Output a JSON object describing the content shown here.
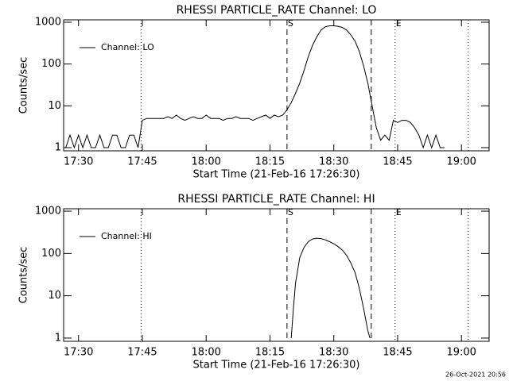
{
  "chart_data": [
    {
      "type": "line",
      "title": "RHESSI PARTICLE_RATE Channel: LO",
      "xlabel": "Start Time (21-Feb-16 17:26:30)",
      "ylabel": "Counts/sec",
      "x": [
        27,
        28,
        29,
        30,
        31,
        32,
        33,
        34,
        35,
        36,
        37,
        38,
        39,
        40,
        41,
        42,
        43,
        44,
        45,
        46,
        47,
        48,
        49,
        50,
        51,
        52,
        53,
        54,
        55,
        56,
        57,
        58,
        59,
        60,
        61,
        62,
        63,
        64,
        65,
        66,
        67,
        68,
        69,
        70,
        71,
        72,
        73,
        74,
        75,
        76,
        77,
        78,
        79,
        80,
        81,
        82,
        83,
        84,
        85,
        86,
        87,
        88,
        89,
        90,
        91,
        92,
        93,
        94,
        95,
        96,
        97,
        98,
        99,
        100,
        101,
        102,
        103,
        104,
        105,
        106,
        107,
        108,
        109,
        110,
        111,
        112,
        113,
        114,
        115,
        116
      ],
      "series": [
        {
          "name": "Channel: LO",
          "color": "#000000",
          "values": [
            1,
            2,
            1,
            2,
            1,
            2,
            1,
            1,
            2,
            1,
            1,
            2,
            2,
            1,
            1,
            2,
            2,
            1,
            4.5,
            5,
            5,
            5,
            5,
            5,
            5.5,
            5,
            6,
            5,
            4.5,
            5,
            5.5,
            5,
            5,
            6,
            5,
            5,
            5,
            4.5,
            5,
            5,
            5.5,
            5,
            5,
            5,
            4.5,
            5,
            5.5,
            6,
            5,
            6,
            5.5,
            6,
            8,
            12,
            20,
            35,
            70,
            150,
            280,
            450,
            650,
            780,
            820,
            820,
            800,
            750,
            650,
            500,
            350,
            200,
            90,
            35,
            10,
            3,
            1.5,
            2,
            1.5,
            4.5,
            4,
            4.5,
            4.5,
            4,
            3,
            2,
            1,
            2,
            1,
            2,
            1,
            1
          ]
        }
      ],
      "xlim": [
        26.5,
        126.5
      ],
      "xticks": [
        {
          "value": 30,
          "label": "17:30"
        },
        {
          "value": 45,
          "label": "17:45"
        },
        {
          "value": 60,
          "label": "18:00"
        },
        {
          "value": 75,
          "label": "18:15"
        },
        {
          "value": 90,
          "label": "18:30"
        },
        {
          "value": 105,
          "label": "18:45"
        },
        {
          "value": 120,
          "label": "19:00"
        }
      ],
      "ylim": [
        0.84,
        1140
      ],
      "yticks": [
        1,
        10,
        100,
        1000
      ],
      "log_y": true,
      "legend": "upper left",
      "vlines": [
        {
          "x": 44.7,
          "style": "dotted"
        },
        {
          "x": 79,
          "style": "dashed"
        },
        {
          "x": 98.8,
          "style": "dashed"
        },
        {
          "x": 104.4,
          "style": "dotted"
        },
        {
          "x": 121.6,
          "style": "dotted"
        }
      ],
      "annotations": [
        {
          "text": "S",
          "x": 79
        },
        {
          "text": "E",
          "x": 104.4
        }
      ]
    },
    {
      "type": "line",
      "title": "RHESSI PARTICLE_RATE Channel: HI",
      "xlabel": "Start Time (21-Feb-16 17:26:30)",
      "ylabel": "Counts/sec",
      "x": [
        80,
        80.5,
        81,
        82,
        83,
        84,
        85,
        86,
        87,
        88,
        89,
        90,
        91,
        92,
        93,
        94,
        95,
        96,
        97,
        98,
        98.5
      ],
      "series": [
        {
          "name": "Channel: HI",
          "color": "#000000",
          "values": [
            1,
            5,
            20,
            80,
            140,
            190,
            220,
            230,
            225,
            210,
            190,
            170,
            145,
            120,
            90,
            60,
            35,
            15,
            5,
            1.5,
            1
          ]
        }
      ],
      "xlim": [
        26.5,
        126.5
      ],
      "xticks": [
        {
          "value": 30,
          "label": "17:30"
        },
        {
          "value": 45,
          "label": "17:45"
        },
        {
          "value": 60,
          "label": "18:00"
        },
        {
          "value": 75,
          "label": "18:15"
        },
        {
          "value": 90,
          "label": "18:30"
        },
        {
          "value": 105,
          "label": "18:45"
        },
        {
          "value": 120,
          "label": "19:00"
        }
      ],
      "ylim": [
        0.84,
        1140
      ],
      "yticks": [
        1,
        10,
        100,
        1000
      ],
      "log_y": true,
      "legend": "upper left",
      "vlines": [
        {
          "x": 44.7,
          "style": "dotted"
        },
        {
          "x": 79,
          "style": "dashed"
        },
        {
          "x": 98.8,
          "style": "dashed"
        },
        {
          "x": 104.4,
          "style": "dotted"
        },
        {
          "x": 121.6,
          "style": "dotted"
        }
      ],
      "annotations": [
        {
          "text": "S",
          "x": 79
        },
        {
          "text": "E",
          "x": 104.4
        }
      ]
    }
  ],
  "footer": "26-Oct-2021 20:56"
}
